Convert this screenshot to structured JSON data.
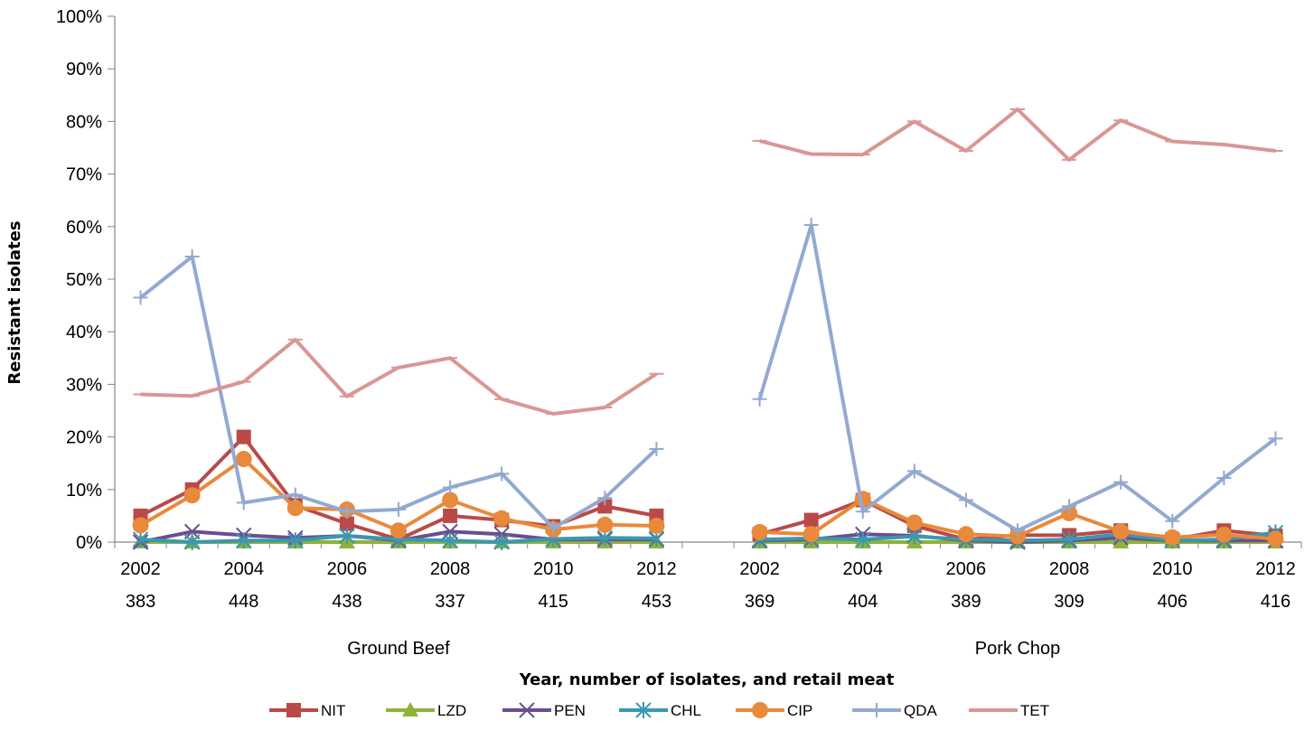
{
  "chart_data": {
    "type": "line",
    "xlabel": "Year, number of isolates, and retail meat",
    "ylabel": "Resistant isolates",
    "ylim": [
      0,
      100
    ],
    "yticks": [
      "0%",
      "10%",
      "20%",
      "30%",
      "40%",
      "50%",
      "60%",
      "70%",
      "80%",
      "90%",
      "100%"
    ],
    "groups": [
      {
        "name": "Ground Beef",
        "years": [
          2002,
          2003,
          2004,
          2005,
          2006,
          2007,
          2008,
          2009,
          2010,
          2011,
          2012
        ],
        "tick_labels": [
          {
            "year": "2002",
            "count": "383"
          },
          {
            "year": "2004",
            "count": "448"
          },
          {
            "year": "2006",
            "count": "438"
          },
          {
            "year": "2008",
            "count": "337"
          },
          {
            "year": "2010",
            "count": "415"
          },
          {
            "year": "2012",
            "count": "453"
          }
        ]
      },
      {
        "name": "Pork Chop",
        "years": [
          2002,
          2003,
          2004,
          2005,
          2006,
          2007,
          2008,
          2009,
          2010,
          2011,
          2012
        ],
        "tick_labels": [
          {
            "year": "2002",
            "count": "369"
          },
          {
            "year": "2004",
            "count": "404"
          },
          {
            "year": "2006",
            "count": "389"
          },
          {
            "year": "2008",
            "count": "309"
          },
          {
            "year": "2010",
            "count": "406"
          },
          {
            "year": "2012",
            "count": "416"
          }
        ]
      }
    ],
    "series": [
      {
        "name": "NIT",
        "color": "#B94A48",
        "marker": "square",
        "values": [
          [
            5,
            10,
            20,
            7,
            3.5,
            0.5,
            5,
            4.2,
            3,
            6.8,
            5
          ],
          [
            1.5,
            4.2,
            8,
            3.1,
            0.5,
            1.3,
            1.3,
            2.2,
            0.5,
            2.2,
            1.2
          ]
        ]
      },
      {
        "name": "LZD",
        "color": "#8DB33A",
        "marker": "triangle",
        "values": [
          [
            0,
            0,
            0,
            0,
            0,
            0,
            0,
            0,
            0,
            0,
            0
          ],
          [
            0,
            0,
            0,
            0,
            0,
            0,
            0,
            0,
            0,
            0,
            0
          ]
        ]
      },
      {
        "name": "PEN",
        "color": "#6B4E8E",
        "marker": "x",
        "values": [
          [
            0,
            2,
            1.3,
            0.8,
            1.2,
            0.3,
            2,
            1.5,
            0.5,
            0.5,
            0.5
          ],
          [
            0.3,
            0.5,
            1.5,
            1.2,
            0.3,
            0,
            0.3,
            0.8,
            0.3,
            0.3,
            0.3
          ]
        ]
      },
      {
        "name": "CHL",
        "color": "#3A98B0",
        "marker": "asterisk",
        "values": [
          [
            0.5,
            0,
            0.3,
            0.3,
            1.2,
            0.5,
            0.3,
            0,
            0.6,
            0.8,
            0.7
          ],
          [
            0.5,
            0.7,
            0.5,
            1.1,
            0.5,
            0.3,
            0.5,
            1.5,
            0.3,
            0.5,
            1.8
          ]
        ]
      },
      {
        "name": "CIP",
        "color": "#E9893B",
        "marker": "circle",
        "values": [
          [
            3.2,
            8.9,
            15.8,
            6.5,
            6.2,
            2.2,
            8,
            4.5,
            2.4,
            3.3,
            3.1
          ],
          [
            1.9,
            1.5,
            8.2,
            3.7,
            1.5,
            1.1,
            5.5,
            2,
            0.9,
            1.4,
            0.6
          ]
        ]
      },
      {
        "name": "QDA",
        "color": "#93A9D1",
        "marker": "plus",
        "values": [
          [
            46.5,
            54.3,
            7.5,
            9,
            5.8,
            6.2,
            10.4,
            13,
            2.7,
            8.4,
            17.7
          ],
          [
            27.2,
            60.3,
            5.8,
            13.5,
            8,
            2.2,
            6.8,
            11.4,
            4,
            12.2,
            19.7
          ]
        ]
      },
      {
        "name": "TET",
        "color": "#D99694",
        "marker": "dash",
        "values": [
          [
            28.1,
            27.8,
            30.5,
            38.5,
            27.7,
            33.2,
            35,
            27.2,
            24.4,
            25.6,
            32
          ],
          [
            76.3,
            73.8,
            73.7,
            80,
            74.4,
            82.3,
            72.7,
            80.2,
            76.2,
            75.6,
            74.4
          ]
        ]
      }
    ],
    "legend": {
      "placement": "bottom"
    }
  }
}
